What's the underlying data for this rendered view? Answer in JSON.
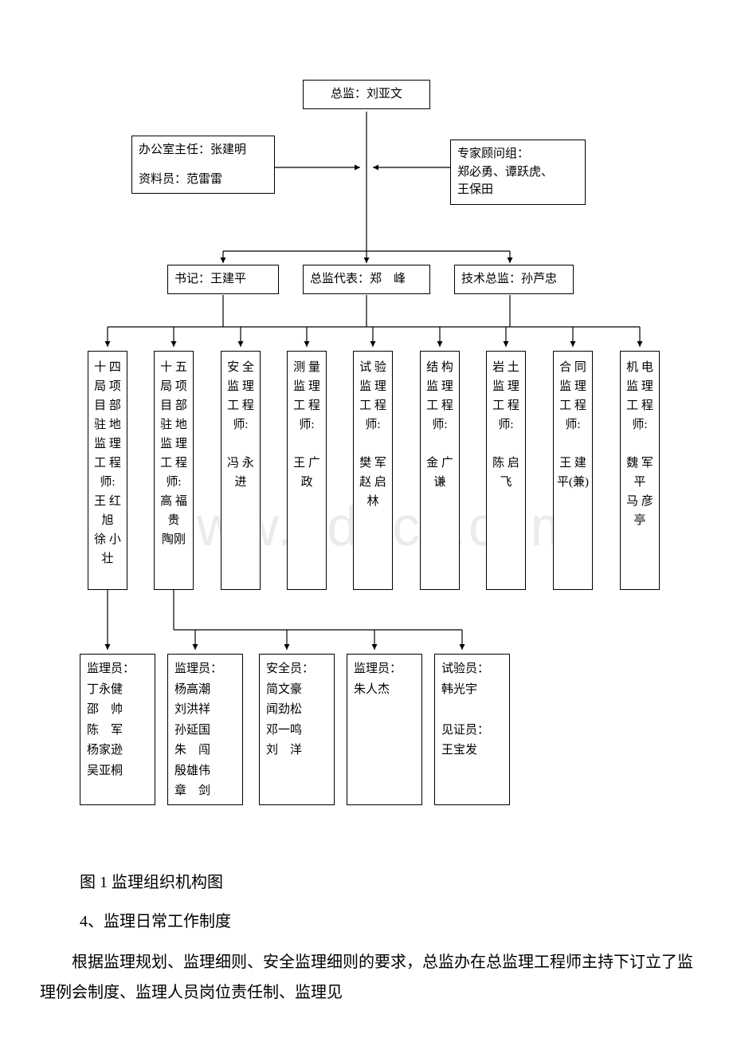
{
  "watermark": "www.bdocx.com",
  "top": {
    "label": "总监：刘亚文"
  },
  "left_support": {
    "line1": "办公室主任：张建明",
    "line2": "资料员：范雷雷"
  },
  "right_support": {
    "line1": "专家顾问组：",
    "line2": "郑必勇、谭跃虎、",
    "line3": "王保田"
  },
  "mid": {
    "a": "书记：王建平",
    "b": "总监代表：郑　峰",
    "c": "技术总监：孙芦忠"
  },
  "engineers": [
    {
      "titleChars": [
        "十 四",
        "局 项",
        "目 部",
        "驻 地",
        "监 理",
        "工 程",
        "师:",
        "王 红",
        "旭",
        "徐 小",
        "壮"
      ]
    },
    {
      "titleChars": [
        "十 五",
        "局 项",
        "目 部",
        "驻 地",
        "监 理",
        "工 程",
        "师:",
        "高 福",
        "贵",
        "陶刚"
      ]
    },
    {
      "titleChars": [
        "安 全",
        "监 理",
        "工 程",
        "师:",
        "",
        "冯 永",
        "进"
      ]
    },
    {
      "titleChars": [
        "测 量",
        "监 理",
        "工 程",
        "师:",
        "",
        "王 广",
        "政"
      ]
    },
    {
      "titleChars": [
        "试 验",
        "监 理",
        "工 程",
        "师:",
        "",
        "樊 军",
        "赵 启",
        "林"
      ]
    },
    {
      "titleChars": [
        "结 构",
        "监 理",
        "工 程",
        "师:",
        "",
        "金 广",
        "谦"
      ]
    },
    {
      "titleChars": [
        "岩 土",
        "监 理",
        "工 程",
        "师:",
        "",
        "陈 启",
        "飞"
      ]
    },
    {
      "titleChars": [
        "合 同",
        "监 理",
        "工 程",
        "师:",
        "",
        "王 建",
        "平(兼)"
      ]
    },
    {
      "titleChars": [
        "机 电",
        "监 理",
        "工 程",
        "师:",
        "",
        "魏 军",
        "平",
        "马 彦",
        "亭"
      ]
    }
  ],
  "bottom": [
    {
      "header": "监理员：",
      "lines": [
        "丁永健",
        "邵　帅",
        "陈　军",
        "杨家逊",
        "吴亚桐"
      ]
    },
    {
      "header": "监理员：",
      "lines": [
        "杨高潮",
        "刘洪祥",
        "孙延国",
        "朱　闯",
        "殷雄伟",
        "章　剑"
      ]
    },
    {
      "header": "安全员：",
      "lines": [
        "简文豪",
        "闻劲松",
        "邓一鸣",
        "刘　洋"
      ]
    },
    {
      "header": "监理员：",
      "lines": [
        "朱人杰"
      ]
    },
    {
      "header": "试验员：",
      "lines": [
        "韩光宇",
        "",
        "见证员：",
        "王宝发"
      ]
    }
  ],
  "caption": "图 1 监理组织机构图",
  "heading": "4、监理日常工作制度",
  "paragraph": "根据监理规划、监理细则、安全监理细则的要求，总监办在总监理工程师主持下订立了监理例会制度、监理人员岗位责任制、监理见"
}
